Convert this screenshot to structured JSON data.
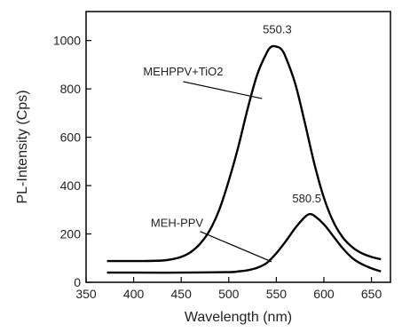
{
  "chart_data": {
    "type": "line",
    "xlabel": "Wavelength (nm)",
    "ylabel": "PL-Intensity (Cps)",
    "xlim": [
      350,
      670
    ],
    "ylim": [
      0,
      1120
    ],
    "xticks": [
      350,
      400,
      450,
      500,
      550,
      600,
      650
    ],
    "yticks": [
      0,
      200,
      400,
      600,
      800,
      1000
    ],
    "grid": false,
    "series": [
      {
        "name": "MEHPPV+TiO2",
        "x": [
          372,
          390,
          410,
          430,
          440,
          450,
          460,
          470,
          480,
          490,
          500,
          510,
          520,
          530,
          540,
          545,
          550,
          555,
          560,
          570,
          580,
          590,
          600,
          610,
          620,
          630,
          640,
          650,
          660
        ],
        "y": [
          88,
          88,
          88,
          90,
          95,
          105,
          125,
          160,
          215,
          300,
          420,
          560,
          720,
          860,
          950,
          975,
          975,
          965,
          930,
          820,
          660,
          490,
          350,
          250,
          185,
          145,
          120,
          105,
          95
        ]
      },
      {
        "name": "MEH-PPV",
        "x": [
          372,
          400,
          450,
          500,
          510,
          520,
          530,
          540,
          550,
          560,
          570,
          580,
          585,
          590,
          600,
          610,
          620,
          630,
          640,
          650,
          660
        ],
        "y": [
          40,
          40,
          40,
          42,
          45,
          50,
          60,
          80,
          120,
          170,
          225,
          270,
          282,
          275,
          240,
          190,
          140,
          100,
          75,
          58,
          45
        ]
      }
    ],
    "annotations": [
      {
        "text": "550.3",
        "x": 551,
        "y": 1030
      },
      {
        "text": "580.5",
        "x": 582,
        "y": 330
      },
      {
        "text": "MEHPPV+TiO2",
        "x": 410,
        "y": 855
      },
      {
        "text": "MEH-PPV",
        "x": 418,
        "y": 230
      }
    ]
  }
}
